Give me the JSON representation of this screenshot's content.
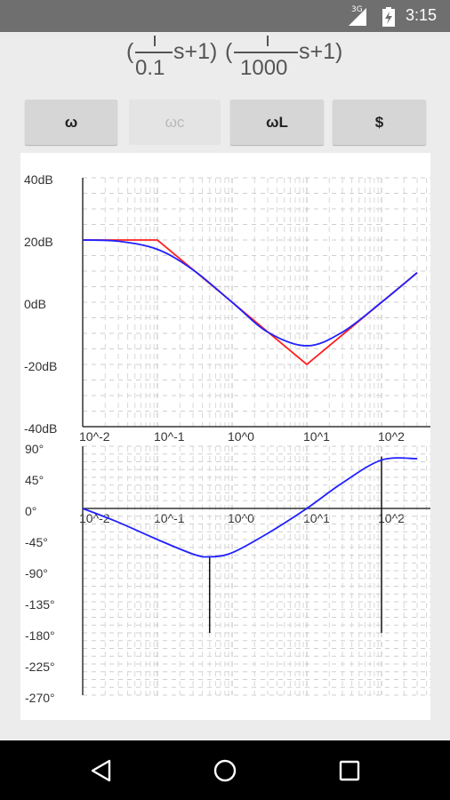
{
  "status": {
    "network": "3G",
    "time": "3:15",
    "icons": [
      "signal-icon",
      "battery-charging-icon"
    ]
  },
  "formula": {
    "part1_open": "(",
    "part1_numerator": "1",
    "part1_denominator": "0.1",
    "part1_tail": "s+1)",
    "part2_open": "(",
    "part2_numerator": "1",
    "part2_denominator": "1000",
    "part2_tail": "s+1)"
  },
  "buttons": [
    {
      "label": "ω",
      "enabled": true
    },
    {
      "label": "ωc",
      "enabled": false
    },
    {
      "label": "ωL",
      "enabled": true
    },
    {
      "label": "$",
      "enabled": true
    }
  ],
  "nav": {
    "icons": [
      "back-icon",
      "home-icon",
      "recents-icon"
    ]
  },
  "chart_data": [
    {
      "type": "line",
      "title": "",
      "x_scale": "log",
      "xlim": [
        0.01,
        300
      ],
      "ylim": [
        -40,
        40
      ],
      "y_ticks": [
        "40dB",
        "20dB",
        "0dB",
        "-20dB",
        "-40dB"
      ],
      "y_tick_values": [
        40,
        20,
        0,
        -20,
        -40
      ],
      "x_ticks": [
        "10^-2",
        "10^-1",
        "10^0",
        "10^1",
        "10^2"
      ],
      "x_tick_values": [
        0.01,
        0.1,
        1,
        10,
        100
      ],
      "grid": true,
      "series": [
        {
          "color": "#ff2020",
          "style": "asymptotic",
          "x": [
            0.01,
            0.1,
            10,
            300
          ],
          "y": [
            20,
            20,
            -20,
            9.5
          ]
        },
        {
          "color": "#2020ff",
          "style": "exact",
          "x": [
            0.01,
            0.03,
            0.1,
            0.3,
            1,
            3,
            10,
            30,
            100,
            300
          ],
          "y": [
            20,
            19.6,
            17,
            10.4,
            0,
            -9.6,
            -14.0,
            -9.6,
            0,
            9.5
          ]
        }
      ]
    },
    {
      "type": "line",
      "title": "",
      "x_scale": "log",
      "xlim": [
        0.01,
        300
      ],
      "ylim": [
        -270,
        90
      ],
      "y_ticks": [
        "90°",
        "45°",
        "0°",
        "-45°",
        "-90°",
        "-135°",
        "-180°",
        "-225°",
        "-270°"
      ],
      "y_tick_values": [
        90,
        45,
        0,
        -45,
        -90,
        -135,
        -180,
        -225,
        -270
      ],
      "x_ticks": [
        "10^-2",
        "10^-1",
        "10^0",
        "10^1",
        "10^2"
      ],
      "x_tick_values": [
        0.01,
        0.1,
        1,
        10,
        100
      ],
      "grid": true,
      "series": [
        {
          "color": "#2020ff",
          "x": [
            0.01,
            0.03,
            0.1,
            0.3,
            0.5,
            1,
            3,
            10,
            30,
            100,
            300
          ],
          "y": [
            0,
            -20,
            -45,
            -66,
            -70,
            -64,
            -36,
            0,
            37,
            70,
            72
          ]
        }
      ],
      "markers": [
        {
          "x": 0.5,
          "from": -70,
          "to": -180
        },
        {
          "x": 100,
          "from": 75,
          "to": -180
        }
      ]
    }
  ]
}
